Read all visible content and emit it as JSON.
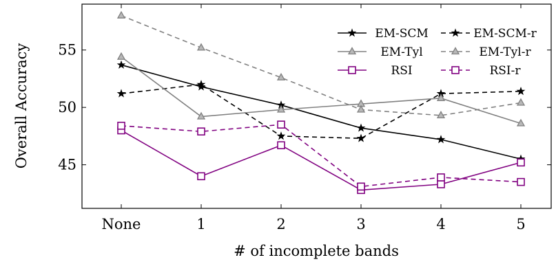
{
  "chart_data": {
    "type": "line",
    "title": "",
    "xlabel": "# of incomplete bands",
    "ylabel": "Overall Accuracy",
    "categories": [
      "None",
      "1",
      "2",
      "3",
      "4",
      "5"
    ],
    "ylim": [
      41.2,
      59.0
    ],
    "yticks": [
      45,
      50,
      55
    ],
    "grid": false,
    "legend_position": "top-right",
    "series": [
      {
        "name": "EM-SCM",
        "values": [
          53.7,
          51.8,
          50.2,
          48.2,
          47.2,
          45.5
        ],
        "color": "#000000",
        "dash": "solid",
        "marker": "star"
      },
      {
        "name": "EM-SCM-r",
        "values": [
          51.2,
          52.0,
          47.5,
          47.3,
          51.2,
          51.4
        ],
        "color": "#000000",
        "dash": "dashed",
        "marker": "star"
      },
      {
        "name": "EM-Tyl",
        "values": [
          54.4,
          49.2,
          49.8,
          50.3,
          50.8,
          48.6
        ],
        "color": "#808080",
        "dash": "solid",
        "marker": "triangle"
      },
      {
        "name": "EM-Tyl-r",
        "values": [
          58.0,
          55.2,
          52.6,
          49.8,
          49.3,
          50.4
        ],
        "color": "#808080",
        "dash": "dashed",
        "marker": "triangle"
      },
      {
        "name": "RSI",
        "values": [
          48.0,
          44.0,
          46.7,
          42.8,
          43.3,
          45.2
        ],
        "color": "#800080",
        "dash": "solid",
        "marker": "square"
      },
      {
        "name": "RSI-r",
        "values": [
          48.4,
          47.9,
          48.5,
          43.1,
          43.9,
          43.5
        ],
        "color": "#800080",
        "dash": "dashed",
        "marker": "square"
      }
    ]
  }
}
